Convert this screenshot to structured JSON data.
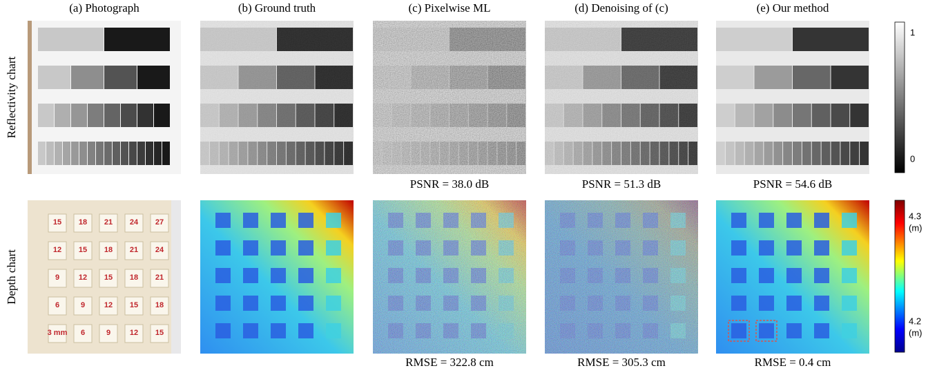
{
  "columns": [
    "(a) Photograph",
    "(b) Ground truth",
    "(c) Pixelwise ML",
    "(d) Denoising of (c)",
    "(e) Our method"
  ],
  "rows": [
    "Reflectivity chart",
    "Depth chart"
  ],
  "psnr": [
    "PSNR = 38.0 dB",
    "PSNR = 51.3 dB",
    "PSNR = 54.6 dB"
  ],
  "rmse": [
    "RMSE = 322.8 cm",
    "RMSE = 305.3 cm",
    "RMSE = 0.4 cm"
  ],
  "reflectivity_colorbar": {
    "top": "1",
    "bottom": "0"
  },
  "depth_colorbar": {
    "top": "4.3",
    "top_unit": "(m)",
    "bottom": "4.2",
    "bottom_unit": "(m)"
  },
  "photo_labels": [
    [
      "15",
      "18",
      "21",
      "24",
      "27"
    ],
    [
      "12",
      "15",
      "18",
      "21",
      "24"
    ],
    [
      "9",
      "12",
      "15",
      "18",
      "21"
    ],
    [
      "6",
      "9",
      "12",
      "15",
      "18"
    ],
    [
      "3 mm",
      "6",
      "9",
      "12",
      "15"
    ]
  ]
}
